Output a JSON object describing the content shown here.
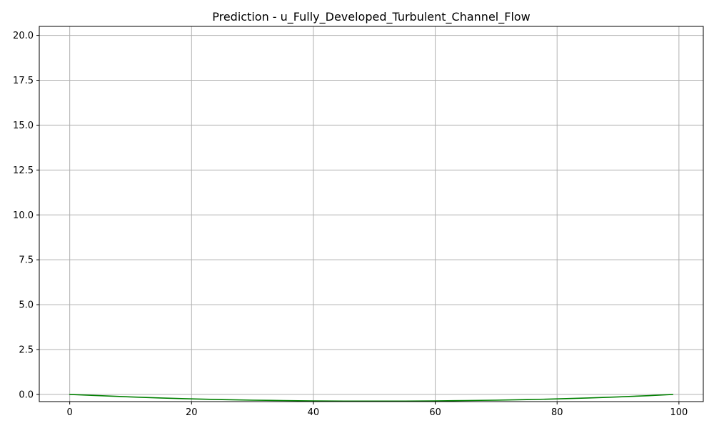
{
  "chart_data": {
    "type": "line",
    "title": "Prediction - u_Fully_Developed_Turbulent_Channel_Flow",
    "xlabel": "",
    "ylabel": "",
    "xlim": [
      -5,
      104
    ],
    "ylim": [
      -0.4,
      20.5
    ],
    "grid": true,
    "xticks": [
      0,
      20,
      40,
      60,
      80,
      100
    ],
    "xtick_labels": [
      "0",
      "20",
      "40",
      "60",
      "80",
      "100"
    ],
    "yticks": [
      0,
      2.5,
      5,
      7.5,
      10,
      12.5,
      15,
      17.5,
      20
    ],
    "ytick_labels": [
      "0.0",
      "2.5",
      "5.0",
      "7.5",
      "10.0",
      "12.5",
      "15.0",
      "17.5",
      "20.0"
    ],
    "series": [
      {
        "color": "#008000",
        "x": [
          0,
          5,
          10,
          15,
          20,
          25,
          30,
          35,
          40,
          45,
          50,
          55,
          60,
          65,
          70,
          75,
          80,
          85,
          90,
          95,
          99
        ],
        "y": [
          0.0,
          -0.07,
          -0.14,
          -0.2,
          -0.25,
          -0.29,
          -0.32,
          -0.34,
          -0.36,
          -0.37,
          -0.37,
          -0.37,
          -0.36,
          -0.34,
          -0.32,
          -0.29,
          -0.25,
          -0.2,
          -0.14,
          -0.07,
          0.0
        ]
      }
    ]
  }
}
